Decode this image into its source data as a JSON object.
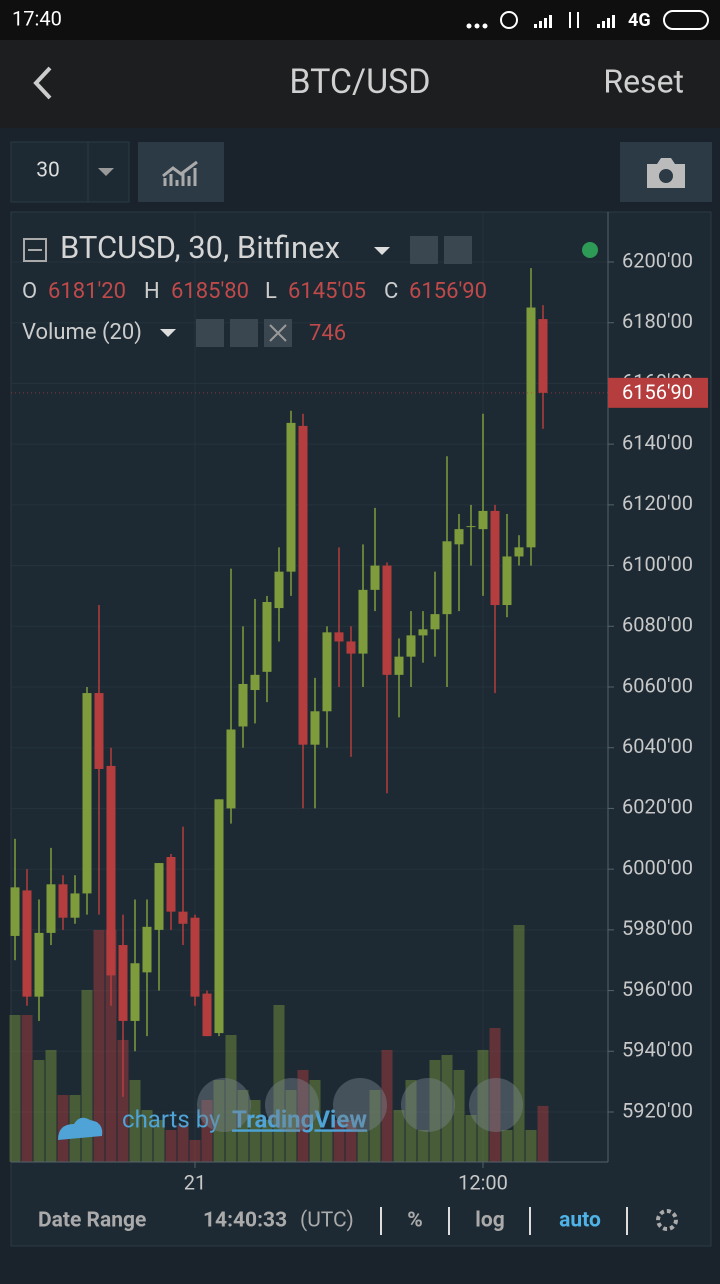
{
  "status_bar": {
    "time": "17:40",
    "network": "4G"
  },
  "header": {
    "title": "BTC/USD",
    "action": "Reset"
  },
  "toolbar": {
    "interval": "30"
  },
  "chart_data": {
    "type": "candlestick",
    "title": "BTCUSD, 30, Bitfinex",
    "ohlc_keys": [
      "O",
      "H",
      "L",
      "C"
    ],
    "last_labels": [
      "6181'20",
      "6185'80",
      "6145'05",
      "6156'90"
    ],
    "up_color": "#7f9c3c",
    "down_color": "#b53d3d",
    "categories": [
      null,
      null,
      null,
      null,
      null,
      null,
      null,
      null,
      null,
      null,
      null,
      null,
      null,
      null,
      null,
      "21",
      null,
      null,
      null,
      null,
      null,
      null,
      null,
      null,
      null,
      null,
      null,
      null,
      null,
      null,
      null,
      null,
      null,
      null,
      null,
      null,
      null,
      null,
      null,
      "12:00",
      null,
      null,
      null,
      null,
      null
    ],
    "candles": [
      [
        5978,
        6010,
        5970,
        5994
      ],
      [
        5993,
        6000,
        5955,
        5958
      ],
      [
        5958,
        5990,
        5950,
        5979
      ],
      [
        5979,
        6007,
        5975,
        5995
      ],
      [
        5995,
        5998,
        5980,
        5984
      ],
      [
        5984,
        5998,
        5982,
        5992
      ],
      [
        5992,
        6060,
        5985,
        6058
      ],
      [
        6058,
        6087,
        5985,
        6033
      ],
      [
        6034,
        6040,
        5955,
        5965
      ],
      [
        5975,
        5985,
        5925,
        5950
      ],
      [
        5950,
        5990,
        5940,
        5969
      ],
      [
        5966,
        5990,
        5945,
        5981
      ],
      [
        5980,
        6002,
        5960,
        6002
      ],
      [
        6004,
        6005,
        5980,
        5986
      ],
      [
        5986,
        6014,
        5975,
        5982
      ],
      [
        5984,
        5985,
        5955,
        5958
      ],
      [
        5959,
        5960,
        5945,
        5945
      ],
      [
        5946,
        6023,
        5945,
        6023
      ],
      [
        6020,
        6099,
        6015,
        6046
      ],
      [
        6047,
        6080,
        6040,
        6061
      ],
      [
        6059,
        6089,
        6048,
        6064
      ],
      [
        6065,
        6090,
        6055,
        6088
      ],
      [
        6086,
        6106,
        6075,
        6098
      ],
      [
        6098,
        6151,
        6090,
        6147
      ],
      [
        6146,
        6150,
        6020,
        6041
      ],
      [
        6041,
        6063,
        6020,
        6052
      ],
      [
        6052,
        6080,
        6040,
        6078
      ],
      [
        6078,
        6106,
        6060,
        6075
      ],
      [
        6075,
        6080,
        6037,
        6071
      ],
      [
        6071,
        6107,
        6060,
        6092
      ],
      [
        6092,
        6119,
        6085,
        6100
      ],
      [
        6100,
        6101,
        6025,
        6064
      ],
      [
        6064,
        6076,
        6050,
        6070
      ],
      [
        6070,
        6085,
        6060,
        6077
      ],
      [
        6077,
        6085,
        6068,
        6079
      ],
      [
        6079,
        6098,
        6070,
        6084
      ],
      [
        6084,
        6136,
        6060,
        6108
      ],
      [
        6107,
        6117,
        6085,
        6112
      ],
      [
        6113,
        6120,
        6100,
        6113
      ],
      [
        6112,
        6150,
        6090,
        6118
      ],
      [
        6118,
        6120,
        6058,
        6087
      ],
      [
        6087,
        6117,
        6083,
        6103
      ],
      [
        6103,
        6110,
        6100,
        6106
      ],
      [
        6106,
        6198,
        6100,
        6185
      ],
      [
        6181.2,
        6185.8,
        6145.05,
        6156.9
      ]
    ],
    "volume": {
      "name": "Volume (20)",
      "values": [
        1955,
        1955,
        1357,
        1490,
        891,
        891,
        2288,
        3086,
        3086,
        1623,
        1091,
        692,
        559,
        426,
        492,
        293,
        825,
        1091,
        1689,
        958,
        825,
        559,
        2088,
        958,
        1224,
        1091,
        426,
        559,
        559,
        426,
        958,
        1490,
        692,
        1091,
        426,
        1357,
        1423,
        1224,
        625,
        1490,
        1782,
        426,
        3152,
        426,
        746
      ]
    },
    "ylim": [
      5903.53,
      6216.47
    ],
    "yticks": [
      {
        "value": 5920,
        "label": "5920'00"
      },
      {
        "value": 5940,
        "label": "5940'00"
      },
      {
        "value": 5960,
        "label": "5960'00"
      },
      {
        "value": 5980,
        "label": "5980'00"
      },
      {
        "value": 6000,
        "label": "6000'00"
      },
      {
        "value": 6020,
        "label": "6020'00"
      },
      {
        "value": 6040,
        "label": "6040'00"
      },
      {
        "value": 6060,
        "label": "6060'00"
      },
      {
        "value": 6080,
        "label": "6080'00"
      },
      {
        "value": 6100,
        "label": "6100'00"
      },
      {
        "value": 6120,
        "label": "6120'00"
      },
      {
        "value": 6140,
        "label": "6140'00"
      },
      {
        "value": 6160,
        "label": "6160'00"
      },
      {
        "value": 6180,
        "label": "6180'00"
      },
      {
        "value": 6200,
        "label": "6200'00"
      }
    ],
    "grid": true
  },
  "watermark": {
    "prefix": "charts by",
    "brand": "TradingView"
  },
  "footer": {
    "date_range": "Date Range",
    "time": "14:40:33",
    "timezone": "(UTC)",
    "percent": "%",
    "log": "log",
    "auto": "auto"
  }
}
